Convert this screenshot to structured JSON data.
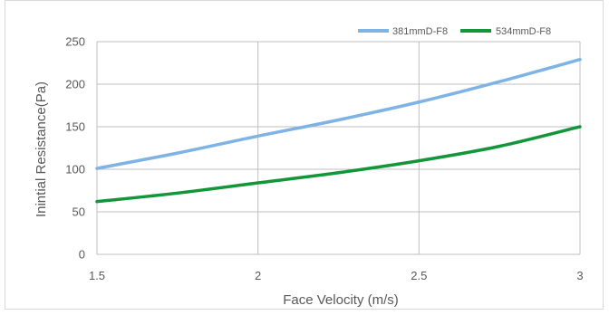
{
  "chart_data": {
    "type": "line",
    "title": "",
    "xlabel": "Face Velocity (m/s)",
    "ylabel": "Inintial Resistance(Pa)",
    "xlim": [
      1.5,
      3
    ],
    "ylim": [
      0,
      250
    ],
    "x_ticks": [
      "1.5",
      "2",
      "2.5",
      "3"
    ],
    "x_tick_values": [
      1.5,
      2,
      2.5,
      3
    ],
    "y_ticks": [
      "0",
      "50",
      "100",
      "150",
      "200",
      "250"
    ],
    "y_tick_values": [
      0,
      50,
      100,
      150,
      200,
      250
    ],
    "grid": true,
    "legend_position": "top-right",
    "x": [
      1.5,
      1.75,
      2.0,
      2.25,
      2.5,
      2.75,
      3.0
    ],
    "series": [
      {
        "name": "381mmD-F8",
        "color": "#7eb3e6",
        "values": [
          101,
          119,
          139,
          158,
          179,
          203,
          229
        ]
      },
      {
        "name": "534mmD-F8",
        "color": "#13963a",
        "values": [
          62,
          72,
          84,
          96,
          110,
          127,
          150
        ]
      }
    ]
  }
}
